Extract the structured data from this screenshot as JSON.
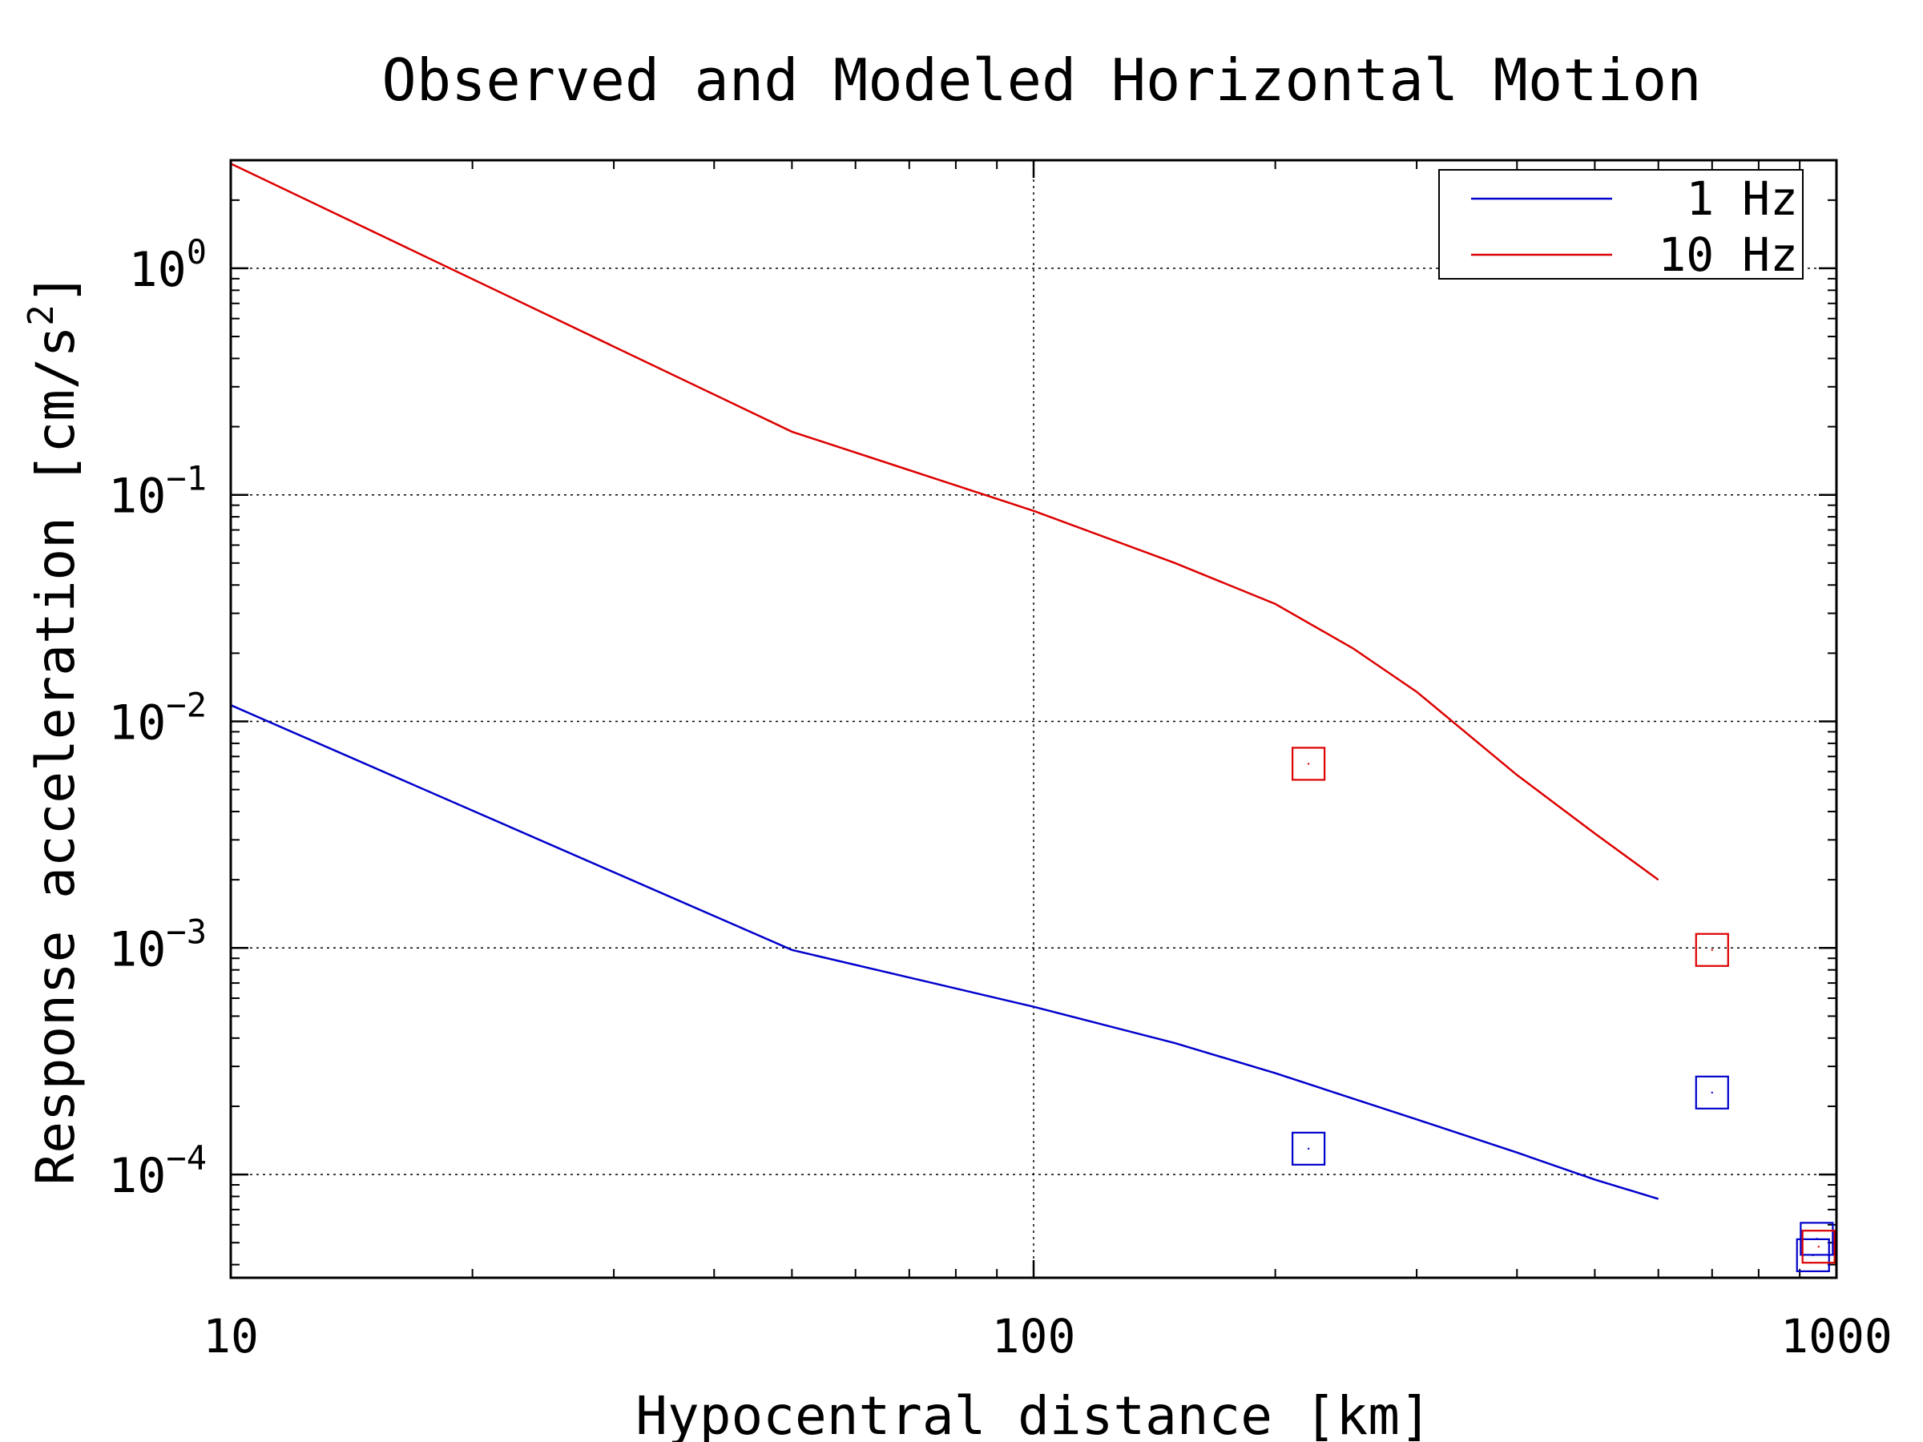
{
  "chart_data": {
    "type": "line",
    "title": "Observed and Modeled Horizontal Motion",
    "xlabel": "Hypocentral distance [km]",
    "ylabel_main": "Response acceleration [cm/s",
    "ylabel_sup": "2",
    "ylabel_end": "]",
    "xscale": "log",
    "yscale": "log",
    "xlim": [
      10,
      1000
    ],
    "ylim": [
      3.5e-05,
      3.0
    ],
    "grid": true,
    "legend_position": "top-right",
    "x_ticks": [
      {
        "value": 10,
        "label": "10"
      },
      {
        "value": 100,
        "label": "100"
      },
      {
        "value": 1000,
        "label": "1000"
      }
    ],
    "y_ticks": [
      {
        "value": 1,
        "base": "10",
        "exp": "0"
      },
      {
        "value": 0.1,
        "base": "10",
        "exp": "−1"
      },
      {
        "value": 0.01,
        "base": "10",
        "exp": "−2"
      },
      {
        "value": 0.001,
        "base": "10",
        "exp": "−3"
      },
      {
        "value": 0.0001,
        "base": "10",
        "exp": "−4"
      }
    ],
    "series": [
      {
        "name": "1 Hz",
        "color": "#0000cc",
        "x": [
          10,
          50,
          100,
          150,
          200,
          300,
          400,
          500,
          600
        ],
        "y": [
          0.0118,
          0.00098,
          0.00055,
          0.00038,
          0.00028,
          0.000175,
          0.000125,
          9.5e-05,
          7.8e-05
        ]
      },
      {
        "name": "10 Hz",
        "color": "#dd0000",
        "x": [
          10,
          50,
          100,
          150,
          200,
          250,
          300,
          400,
          500,
          600
        ],
        "y": [
          2.9,
          0.19,
          0.085,
          0.05,
          0.033,
          0.021,
          0.0135,
          0.0058,
          0.0032,
          0.002
        ]
      }
    ],
    "observed": [
      {
        "series": "1 Hz",
        "color": "#0000cc",
        "x": 220,
        "y": 0.00013
      },
      {
        "series": "1 Hz",
        "color": "#0000cc",
        "x": 700,
        "y": 0.00023
      },
      {
        "series": "1 Hz",
        "color": "#0000cc",
        "x": 945,
        "y": 5.2e-05
      },
      {
        "series": "1 Hz",
        "color": "#0000cc",
        "x": 935,
        "y": 4.4e-05
      },
      {
        "series": "10 Hz",
        "color": "#dd0000",
        "x": 220,
        "y": 0.0065
      },
      {
        "series": "10 Hz",
        "color": "#dd0000",
        "x": 700,
        "y": 0.00098
      },
      {
        "series": "10 Hz",
        "color": "#dd0000",
        "x": 950,
        "y": 4.8e-05
      }
    ]
  }
}
